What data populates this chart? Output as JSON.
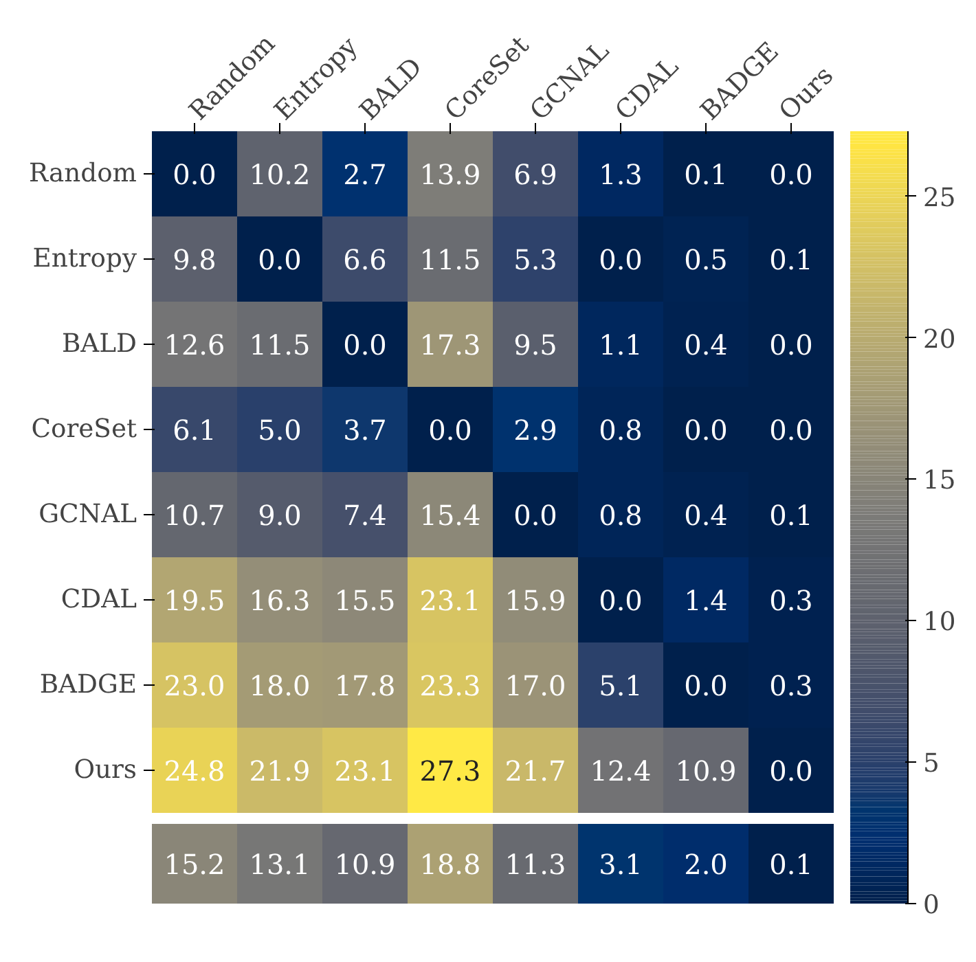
{
  "chart_data": [
    {
      "type": "heatmap",
      "categories": [
        "Random",
        "Entropy",
        "BALD",
        "CoreSet",
        "GCNAL",
        "CDAL",
        "BADGE",
        "Ours"
      ],
      "y_categories": [
        "Random",
        "Entropy",
        "BALD",
        "CoreSet",
        "GCNAL",
        "CDAL",
        "BADGE",
        "Ours"
      ],
      "cells": [
        [
          0.0,
          10.2,
          2.7,
          13.9,
          6.9,
          1.3,
          0.1,
          0.0
        ],
        [
          9.8,
          0.0,
          6.6,
          11.5,
          5.3,
          0.0,
          0.5,
          0.1
        ],
        [
          12.6,
          11.5,
          0.0,
          17.3,
          9.5,
          1.1,
          0.4,
          0.0
        ],
        [
          6.1,
          5.0,
          3.7,
          0.0,
          2.9,
          0.8,
          0.0,
          0.0
        ],
        [
          10.7,
          9.0,
          7.4,
          15.4,
          0.0,
          0.8,
          0.4,
          0.1
        ],
        [
          19.5,
          16.3,
          15.5,
          23.1,
          15.9,
          0.0,
          1.4,
          0.3
        ],
        [
          23.0,
          18.0,
          17.8,
          23.3,
          17.0,
          5.1,
          0.0,
          0.3
        ],
        [
          24.8,
          21.9,
          23.1,
          27.3,
          21.7,
          12.4,
          10.9,
          0.0
        ]
      ],
      "cell_labels": [
        [
          "0.0",
          "10.2",
          "2.7",
          "13.9",
          "6.9",
          "1.3",
          "0.1",
          "0.0"
        ],
        [
          "9.8",
          "0.0",
          "6.6",
          "11.5",
          "5.3",
          "0.0",
          "0.5",
          "0.1"
        ],
        [
          "12.6",
          "11.5",
          "0.0",
          "17.3",
          "9.5",
          "1.1",
          "0.4",
          "0.0"
        ],
        [
          "6.1",
          "5.0",
          "3.7",
          "0.0",
          "2.9",
          "0.8",
          "0.0",
          "0.0"
        ],
        [
          "10.7",
          "9.0",
          "7.4",
          "15.4",
          "0.0",
          "0.8",
          "0.4",
          "0.1"
        ],
        [
          "19.5",
          "16.3",
          "15.5",
          "23.1",
          "15.9",
          "0.0",
          "1.4",
          "0.3"
        ],
        [
          "23.0",
          "18.0",
          "17.8",
          "23.3",
          "17.0",
          "5.1",
          "0.0",
          "0.3"
        ],
        [
          "24.8",
          "21.9",
          "23.1",
          "27.3",
          "21.7",
          "12.4",
          "10.9",
          "0.0"
        ]
      ],
      "clim": [
        0,
        27.3
      ],
      "cticks": [
        0,
        5,
        10,
        15,
        20,
        25
      ]
    },
    {
      "type": "heatmap",
      "categories": [
        null,
        null,
        null,
        null,
        null,
        null,
        null,
        null
      ],
      "y_categories": [
        null
      ],
      "cells": [
        [
          15.2,
          13.1,
          10.9,
          18.8,
          11.3,
          3.1,
          2.0,
          0.1
        ]
      ],
      "cell_labels": [
        [
          "15.2",
          "13.1",
          "10.9",
          "18.8",
          "11.3",
          "3.1",
          "2.0",
          "0.1"
        ]
      ]
    }
  ]
}
